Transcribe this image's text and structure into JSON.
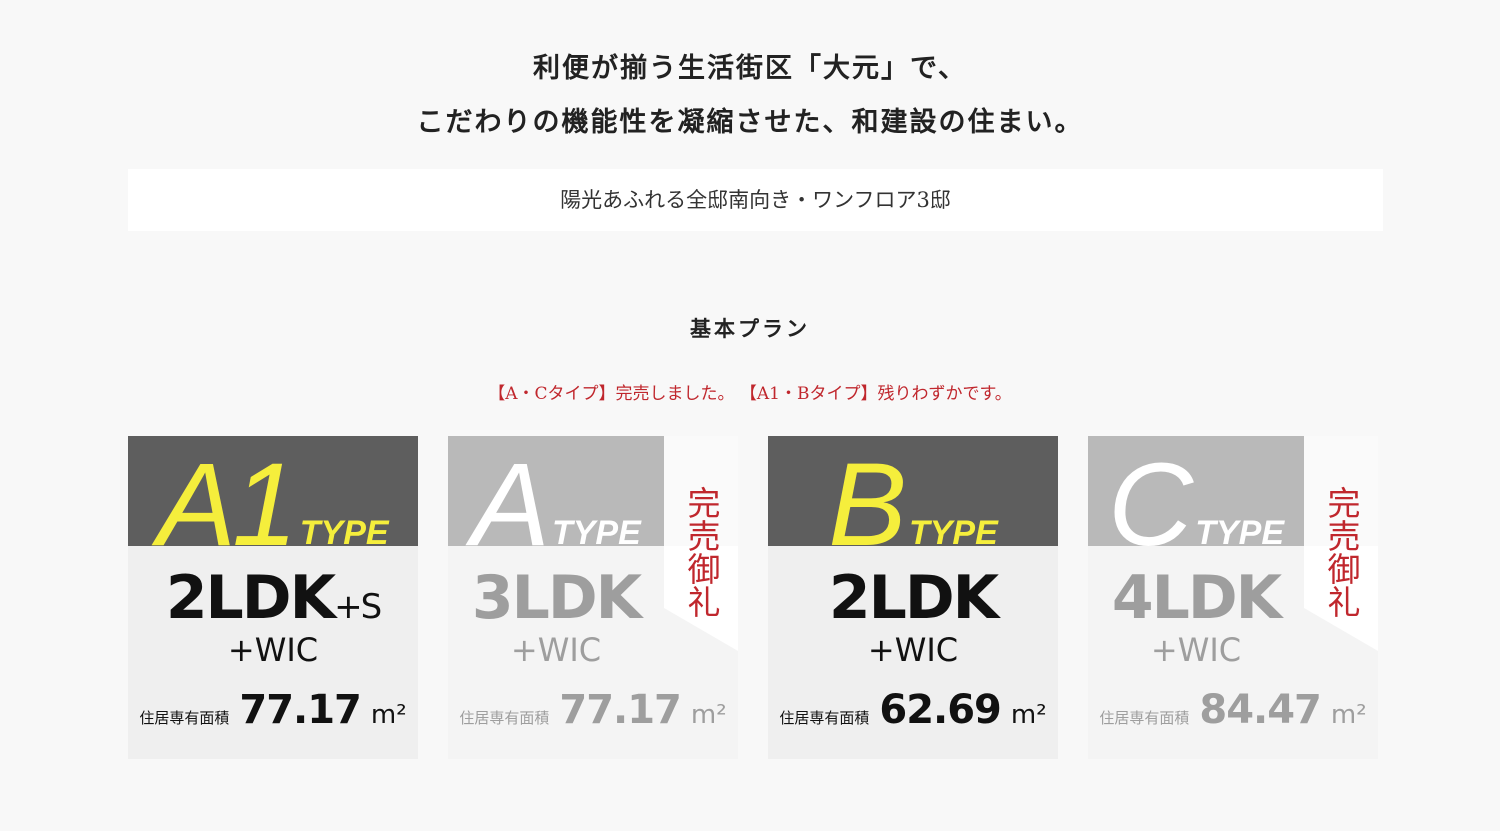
{
  "intro": {
    "line1": "利便が揃う生活街区「大元」で、",
    "line2": "こだわりの機能性を凝縮させた、和建設の住まい。"
  },
  "banner": "陽光あふれる全邸南向き・ワンフロア3邸",
  "section_title": "基本プラン",
  "notice": "【A・Cタイプ】完売しました。 【A1・Bタイプ】残りわずかです。",
  "colors": {
    "accent_yellow": "#f5ee3c",
    "notice_red": "#c0272d"
  },
  "cards": [
    {
      "letter": "A1",
      "type": "TYPE",
      "plan": "2LDK",
      "plan_suffix": "+S",
      "wic": "+WIC",
      "area_label": "住居専有面積",
      "area": "77.17",
      "unit": "m²",
      "status": "available"
    },
    {
      "letter": "A",
      "type": "TYPE",
      "plan": "3LDK",
      "plan_suffix": "",
      "wic": "+WIC",
      "area_label": "住居専有面積",
      "area": "77.17",
      "unit": "m²",
      "status": "sold",
      "sold_label": "完売御礼"
    },
    {
      "letter": "B",
      "type": "TYPE",
      "plan": "2LDK",
      "plan_suffix": "",
      "wic": "+WIC",
      "area_label": "住居専有面積",
      "area": "62.69",
      "unit": "m²",
      "status": "available"
    },
    {
      "letter": "C",
      "type": "TYPE",
      "plan": "4LDK",
      "plan_suffix": "",
      "wic": "+WIC",
      "area_label": "住居専有面積",
      "area": "84.47",
      "unit": "m²",
      "status": "sold",
      "sold_label": "完売御礼"
    }
  ]
}
